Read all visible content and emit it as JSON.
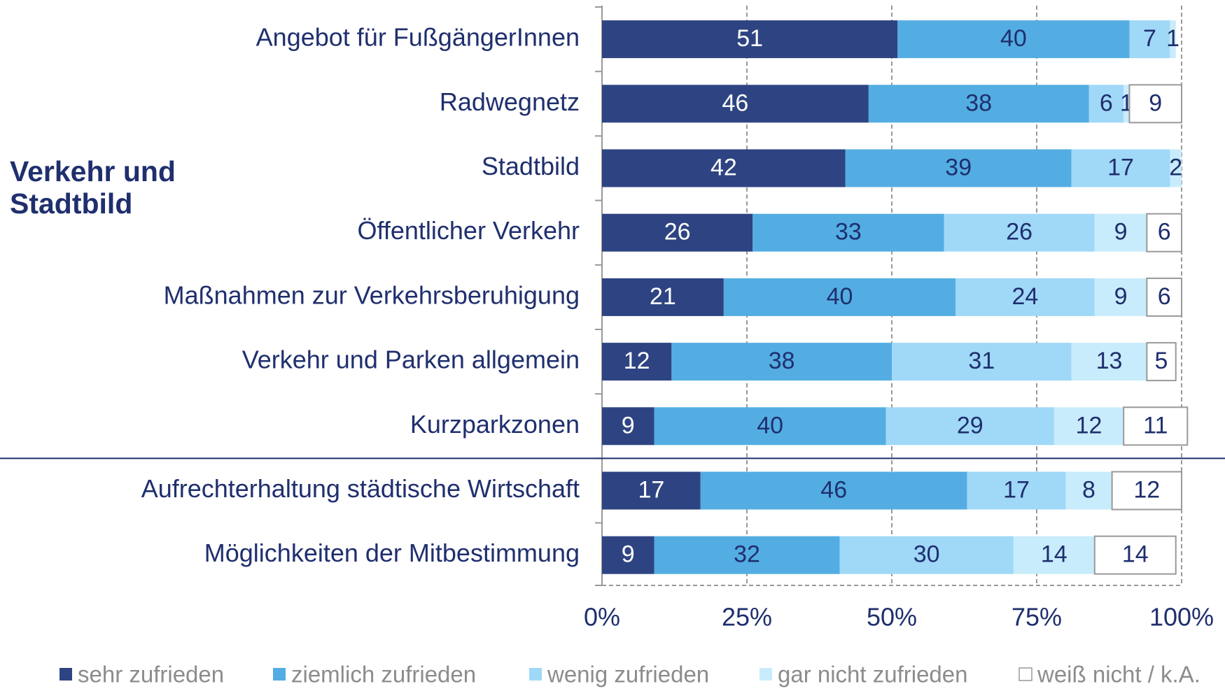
{
  "chart_data": {
    "type": "stacked-bar-horizontal",
    "group_label": "Verkehr und Stadtbild",
    "categories": [
      "Angebot für FußgängerInnen",
      "Radwegnetz",
      "Stadtbild",
      "Öffentlicher Verkehr",
      "Maßnahmen zur Verkehrsberuhigung",
      "Verkehr und Parken allgemein",
      "Kurzparkzonen",
      "Aufrechterhaltung städtische Wirtschaft",
      "Möglichkeiten der Mitbestimmung"
    ],
    "series": [
      {
        "name": "sehr zufrieden",
        "color": "#2e4482",
        "values": [
          51,
          46,
          42,
          26,
          21,
          12,
          9,
          17,
          9
        ]
      },
      {
        "name": "ziemlich zufrieden",
        "color": "#53ade2",
        "values": [
          40,
          38,
          39,
          33,
          40,
          38,
          40,
          46,
          32
        ]
      },
      {
        "name": "wenig zufrieden",
        "color": "#a0d8f8",
        "values": [
          7,
          6,
          17,
          26,
          24,
          31,
          29,
          17,
          30
        ]
      },
      {
        "name": "gar nicht zufrieden",
        "color": "#c8ecfb",
        "values": [
          1,
          1,
          2,
          9,
          9,
          13,
          12,
          8,
          14
        ]
      },
      {
        "name": "weiß nicht / k.A.",
        "color": "#ffffff",
        "values": [
          null,
          9,
          null,
          6,
          6,
          5,
          11,
          12,
          14
        ]
      }
    ],
    "xlim": [
      0,
      100
    ],
    "xticks": [
      {
        "value": 0,
        "label": "0%"
      },
      {
        "value": 25,
        "label": "25%"
      },
      {
        "value": 50,
        "label": "50%"
      },
      {
        "value": 75,
        "label": "75%"
      },
      {
        "value": 100,
        "label": "100%"
      }
    ],
    "grid": true,
    "legend": "bottom"
  }
}
